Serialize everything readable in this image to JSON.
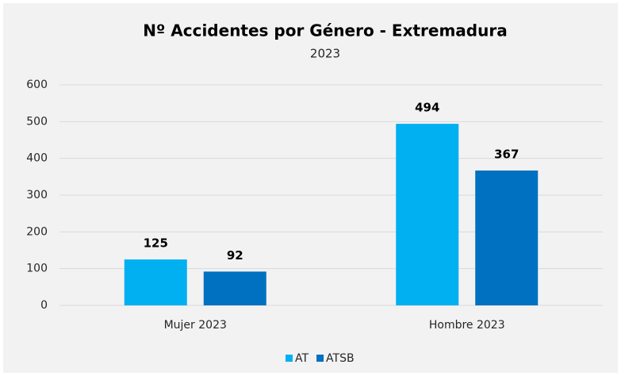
{
  "chart_data": {
    "type": "bar",
    "title": "Nº Accidentes por Género - Extremadura",
    "subtitle": "2023",
    "categories": [
      "Mujer 2023",
      "Hombre 2023"
    ],
    "series": [
      {
        "name": "AT",
        "color": "#00b0f0",
        "values": [
          125,
          494
        ]
      },
      {
        "name": "ATSB",
        "color": "#0070c0",
        "values": [
          92,
          367
        ]
      }
    ],
    "ylim": [
      0,
      600
    ],
    "yticks": [
      0,
      100,
      200,
      300,
      400,
      500,
      600
    ],
    "grid": true,
    "legend": "bottom"
  }
}
